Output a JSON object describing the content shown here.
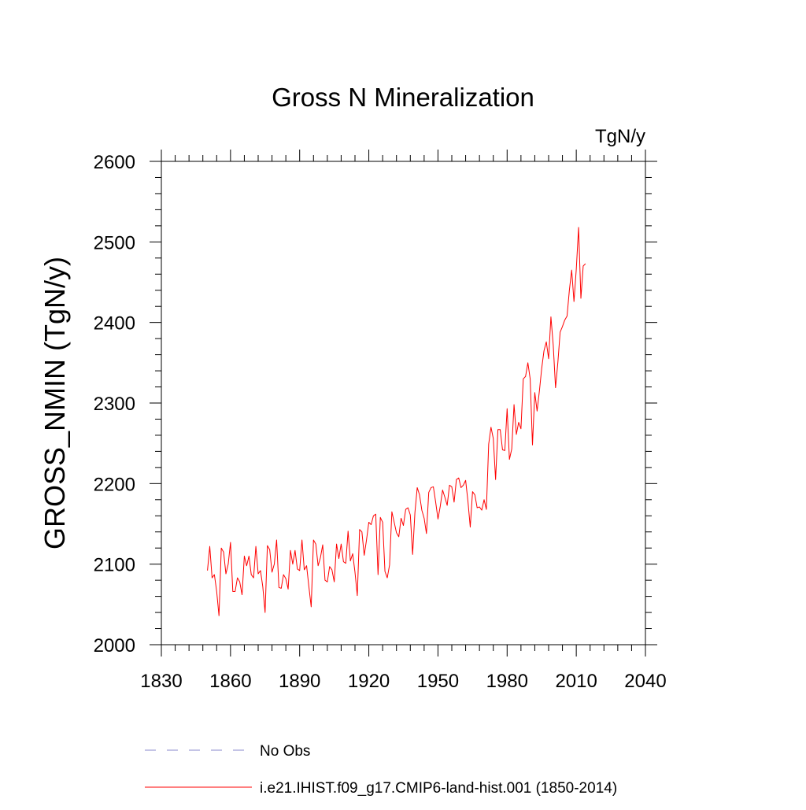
{
  "chart_data": {
    "type": "line",
    "title": "Gross N Mineralization",
    "units_label": "TgN/y",
    "ylabel": "GROSS_NMIN  (TgN/y)",
    "xlabel": "",
    "xlim": [
      1830,
      2040
    ],
    "ylim": [
      2000,
      2600
    ],
    "x_ticks": [
      1830,
      1860,
      1890,
      1920,
      1950,
      1980,
      2010,
      2040
    ],
    "y_ticks": [
      2000,
      2100,
      2200,
      2300,
      2400,
      2500,
      2600
    ],
    "x_tick_labels": [
      "1830",
      "1860",
      "1890",
      "1920",
      "1950",
      "1980",
      "2010",
      "2040"
    ],
    "y_tick_labels": [
      "2000",
      "2100",
      "2200",
      "2300",
      "2400",
      "2500",
      "2600"
    ],
    "grid": false,
    "legend_placement": "bottom",
    "series": [
      {
        "name": "i.e21.IHIST.f09_g17.CMIP6-land-hist.001 (1850-2014)",
        "color": "#ff0000",
        "line_style": "solid",
        "x": [
          1850,
          1851,
          1852,
          1853,
          1854,
          1855,
          1856,
          1857,
          1858,
          1859,
          1860,
          1861,
          1862,
          1863,
          1864,
          1865,
          1866,
          1867,
          1868,
          1869,
          1870,
          1871,
          1872,
          1873,
          1874,
          1875,
          1876,
          1877,
          1878,
          1879,
          1880,
          1881,
          1882,
          1883,
          1884,
          1885,
          1886,
          1887,
          1888,
          1889,
          1890,
          1891,
          1892,
          1893,
          1894,
          1895,
          1896,
          1897,
          1898,
          1899,
          1900,
          1901,
          1902,
          1903,
          1904,
          1905,
          1906,
          1907,
          1908,
          1909,
          1910,
          1911,
          1912,
          1913,
          1914,
          1915,
          1916,
          1917,
          1918,
          1919,
          1920,
          1921,
          1922,
          1923,
          1924,
          1925,
          1926,
          1927,
          1928,
          1929,
          1930,
          1931,
          1932,
          1933,
          1934,
          1935,
          1936,
          1937,
          1938,
          1939,
          1940,
          1941,
          1942,
          1943,
          1944,
          1945,
          1946,
          1947,
          1948,
          1949,
          1950,
          1951,
          1952,
          1953,
          1954,
          1955,
          1956,
          1957,
          1958,
          1959,
          1960,
          1961,
          1962,
          1963,
          1964,
          1965,
          1966,
          1967,
          1968,
          1969,
          1970,
          1971,
          1972,
          1973,
          1974,
          1975,
          1976,
          1977,
          1978,
          1979,
          1980,
          1981,
          1982,
          1983,
          1984,
          1985,
          1986,
          1987,
          1988,
          1989,
          1990,
          1991,
          1992,
          1993,
          1994,
          1995,
          1996,
          1997,
          1998,
          1999,
          2000,
          2001,
          2002,
          2003,
          2004,
          2005,
          2006,
          2007,
          2008,
          2009,
          2010,
          2011,
          2012,
          2013,
          2014
        ],
        "y": [
          2092,
          2122,
          2083,
          2087,
          2066,
          2036,
          2120,
          2115,
          2088,
          2100,
          2127,
          2066,
          2066,
          2083,
          2078,
          2062,
          2110,
          2098,
          2110,
          2087,
          2083,
          2122,
          2088,
          2092,
          2072,
          2040,
          2123,
          2118,
          2090,
          2100,
          2130,
          2071,
          2070,
          2087,
          2082,
          2069,
          2117,
          2100,
          2117,
          2094,
          2092,
          2130,
          2093,
          2098,
          2072,
          2047,
          2130,
          2125,
          2098,
          2108,
          2124,
          2080,
          2078,
          2097,
          2093,
          2078,
          2125,
          2107,
          2125,
          2103,
          2101,
          2141,
          2104,
          2113,
          2090,
          2061,
          2143,
          2140,
          2111,
          2130,
          2152,
          2149,
          2160,
          2162,
          2087,
          2158,
          2152,
          2091,
          2083,
          2099,
          2165,
          2152,
          2139,
          2134,
          2157,
          2148,
          2168,
          2170,
          2161,
          2112,
          2164,
          2195,
          2186,
          2167,
          2157,
          2138,
          2189,
          2195,
          2196,
          2177,
          2156,
          2172,
          2192,
          2183,
          2173,
          2198,
          2196,
          2177,
          2205,
          2207,
          2195,
          2198,
          2204,
          2178,
          2146,
          2190,
          2186,
          2170,
          2171,
          2167,
          2180,
          2168,
          2249,
          2270,
          2256,
          2205,
          2267,
          2267,
          2242,
          2241,
          2293,
          2230,
          2243,
          2298,
          2261,
          2276,
          2268,
          2330,
          2333,
          2350,
          2330,
          2248,
          2313,
          2290,
          2315,
          2343,
          2365,
          2376,
          2355,
          2407,
          2372,
          2319,
          2350,
          2388,
          2395,
          2403,
          2408,
          2440,
          2465,
          2426,
          2466,
          2518,
          2430,
          2470,
          2473
        ]
      }
    ],
    "extra_legend": [
      {
        "name": "No Obs",
        "color": "#8888cc",
        "line_style": "dashed"
      }
    ]
  }
}
